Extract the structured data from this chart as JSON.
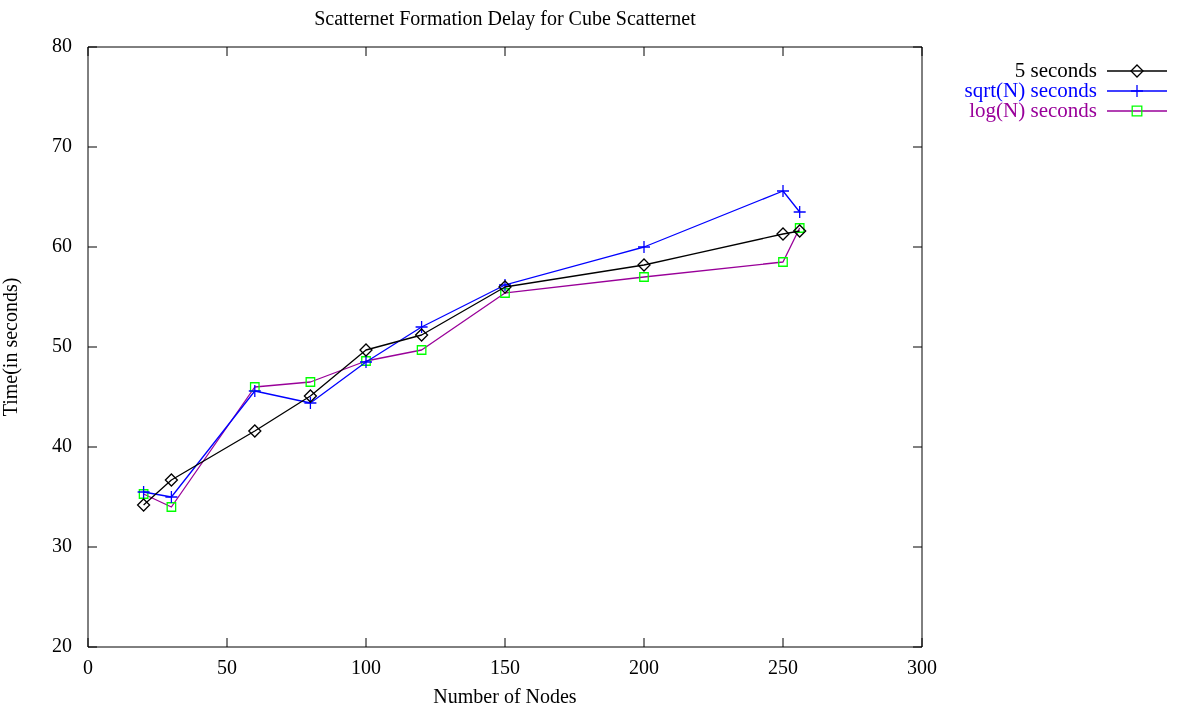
{
  "chart_data": {
    "type": "line",
    "title": "Scatternet Formation Delay for Cube Scatternet",
    "xlabel": "Number of Nodes",
    "ylabel": "Time(in seconds)",
    "x": [
      20,
      30,
      60,
      80,
      100,
      120,
      150,
      200,
      250,
      256
    ],
    "series": [
      {
        "name": "5 seconds",
        "color": "#000000",
        "marker": "diamond",
        "values": [
          34.2,
          36.7,
          41.6,
          45.1,
          49.7,
          51.2,
          56.0,
          58.2,
          61.3,
          61.6
        ]
      },
      {
        "name": "sqrt(N) seconds",
        "color": "#0000ff",
        "marker": "cross",
        "values": [
          35.5,
          35.0,
          45.6,
          44.4,
          48.5,
          52.0,
          56.2,
          60.0,
          65.6,
          63.5
        ]
      },
      {
        "name": "log(N) seconds",
        "color": "#990099",
        "colors": [
          "#00ff00",
          "#00ff00",
          "#00ff00",
          "#00ff00",
          "#00ff00",
          "#00ff00",
          "#00ff00",
          "#00ff00",
          "#00ff00",
          "#00ff00"
        ],
        "marker": "square",
        "values": [
          35.3,
          34.0,
          46.0,
          46.5,
          48.6,
          49.7,
          55.4,
          57.0,
          58.5,
          61.9
        ]
      }
    ],
    "xlim": [
      0,
      300
    ],
    "xticks": [
      0,
      50,
      100,
      150,
      200,
      250,
      300
    ],
    "ylim": [
      20,
      80
    ],
    "yticks": [
      20,
      30,
      40,
      50,
      60,
      70,
      80
    ],
    "grid": false,
    "legend": "top right"
  }
}
